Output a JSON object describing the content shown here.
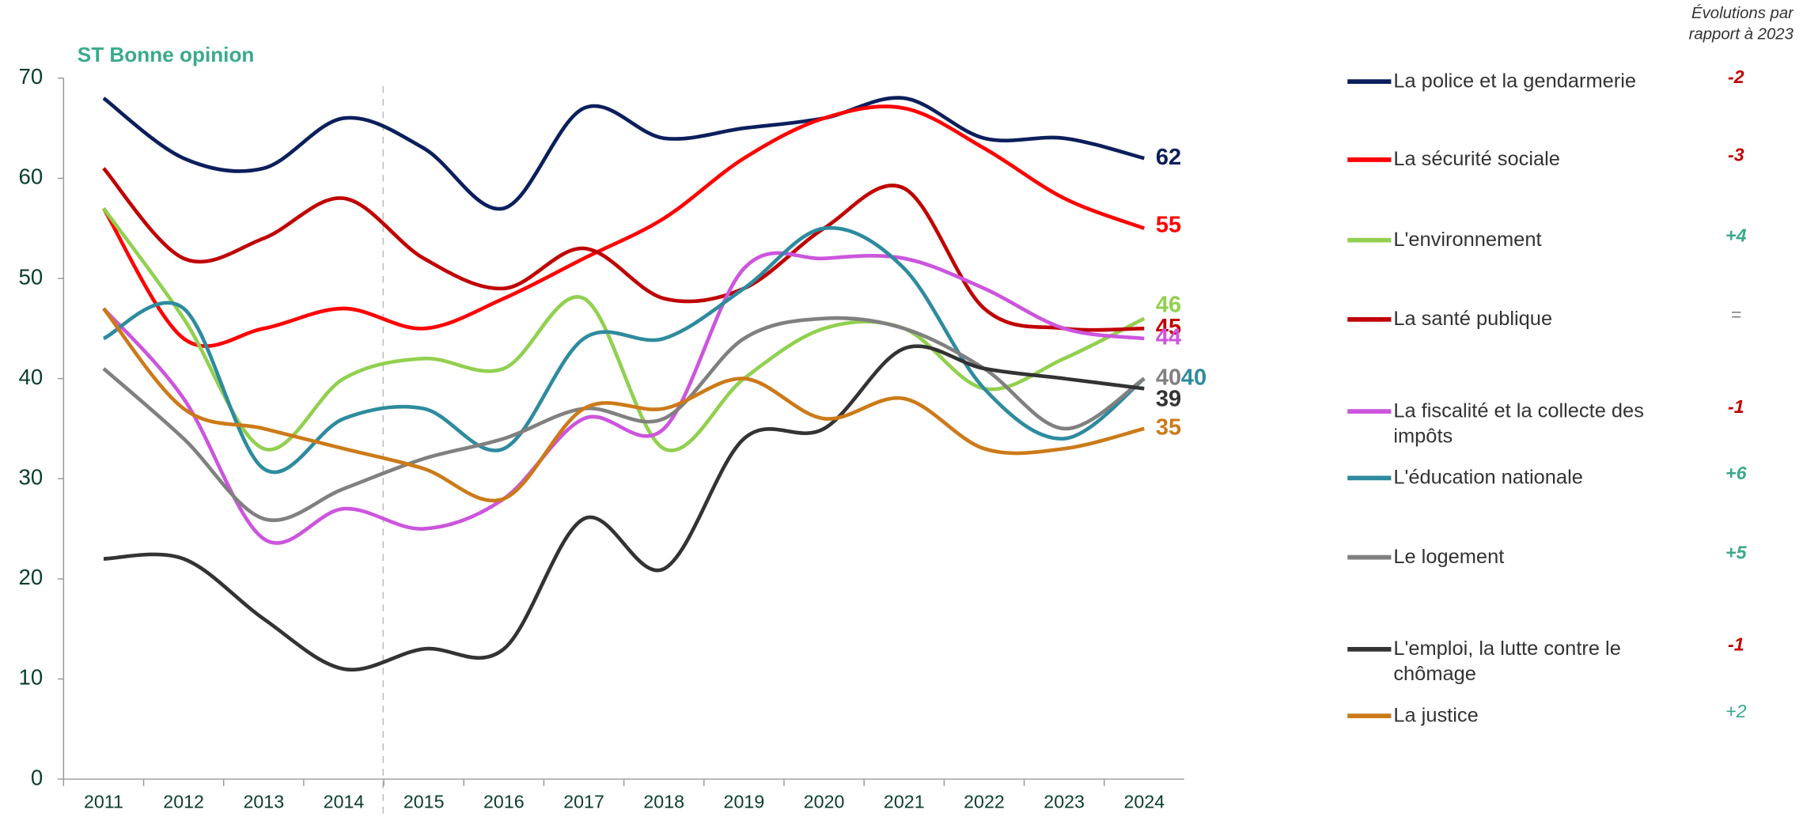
{
  "chart_data": {
    "type": "line",
    "title": "ST Bonne opinion",
    "evolution_header": "Évolutions par rapport à 2023",
    "categories": [
      "2011",
      "2012",
      "2013",
      "2014",
      "2015",
      "2016",
      "2017",
      "2018",
      "2019",
      "2020",
      "2021",
      "2022",
      "2023",
      "2024"
    ],
    "ylim": [
      0,
      70
    ],
    "yticks": [
      0,
      10,
      20,
      30,
      40,
      50,
      60,
      70
    ],
    "series": [
      {
        "name": "La police et la gendarmerie",
        "color": "#0b1f5c",
        "values": [
          68,
          62,
          61,
          66,
          63,
          57,
          67,
          64,
          65,
          66,
          68,
          64,
          64,
          62
        ],
        "evolution": "-2",
        "evolution_color": "#c00000"
      },
      {
        "name": "La sécurité sociale",
        "color": "#ff0000",
        "values": [
          57,
          44,
          45,
          47,
          45,
          48,
          52,
          56,
          62,
          66,
          67,
          63,
          58,
          55
        ],
        "evolution": "-3",
        "evolution_color": "#c00000"
      },
      {
        "name": "L'environnement",
        "color": "#92d050",
        "values": [
          57,
          46,
          33,
          40,
          42,
          41,
          48,
          33,
          40,
          45,
          45,
          39,
          42,
          46
        ],
        "evolution": "+4",
        "evolution_color": "#3aaa8a"
      },
      {
        "name": "La santé publique",
        "color": "#c00000",
        "values": [
          61,
          52,
          54,
          58,
          52,
          49,
          53,
          48,
          49,
          55,
          59,
          47,
          45,
          45
        ],
        "evolution": "=",
        "evolution_color": "#808080"
      },
      {
        "name": "La fiscalité et la collecte des impôts",
        "color": "#cc55dd",
        "values": [
          47,
          38,
          24,
          27,
          25,
          28,
          36,
          35,
          51,
          52,
          52,
          49,
          45,
          44
        ],
        "evolution": "-1",
        "evolution_color": "#c00000"
      },
      {
        "name": "L'éducation nationale",
        "color": "#2e8b9e",
        "values": [
          44,
          47,
          31,
          36,
          37,
          33,
          44,
          44,
          49,
          55,
          51,
          39,
          34,
          40
        ],
        "evolution": "+6",
        "evolution_color": "#3aaa8a"
      },
      {
        "name": "Le logement",
        "color": "#808080",
        "values": [
          41,
          34,
          26,
          29,
          32,
          34,
          37,
          36,
          44,
          46,
          45,
          41,
          35,
          40
        ],
        "evolution": "+5",
        "evolution_color": "#3aaa8a"
      },
      {
        "name": "L'emploi, la lutte contre le chômage",
        "color": "#333333",
        "values": [
          22,
          22,
          16,
          11,
          13,
          13,
          26,
          21,
          34,
          35,
          43,
          41,
          40,
          39
        ],
        "evolution": "-1",
        "evolution_color": "#c00000"
      },
      {
        "name": "La justice",
        "color": "#cc7a1a",
        "values": [
          47,
          37,
          35,
          33,
          31,
          28,
          37,
          37,
          40,
          36,
          38,
          33,
          33,
          35
        ],
        "evolution": "+2",
        "evolution_color": "#3aaa8a"
      }
    ]
  }
}
